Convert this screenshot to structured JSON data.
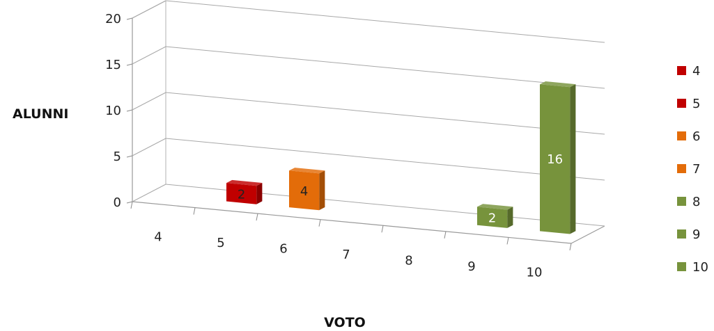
{
  "chart_data": {
    "type": "bar",
    "title": "",
    "xlabel": "VOTO",
    "ylabel": "ALUNNI",
    "categories": [
      "4",
      "5",
      "6",
      "7",
      "8",
      "9",
      "10"
    ],
    "values": [
      0,
      2,
      4,
      0,
      0,
      2,
      16
    ],
    "data_labels": [
      "",
      "2",
      "4",
      "",
      "",
      "2",
      "16"
    ],
    "yticks": [
      "0",
      "5",
      "10",
      "15",
      "20"
    ],
    "ylim": [
      0,
      20
    ],
    "grid": true,
    "projection": "3d",
    "legend": {
      "position": "right",
      "entries": [
        "4",
        "5",
        "6",
        "7",
        "8",
        "9",
        "10"
      ]
    },
    "colors": [
      "#c00000",
      "#c00000",
      "#e36c09",
      "#e36c09",
      "#77933c",
      "#77933c",
      "#77933c"
    ]
  }
}
